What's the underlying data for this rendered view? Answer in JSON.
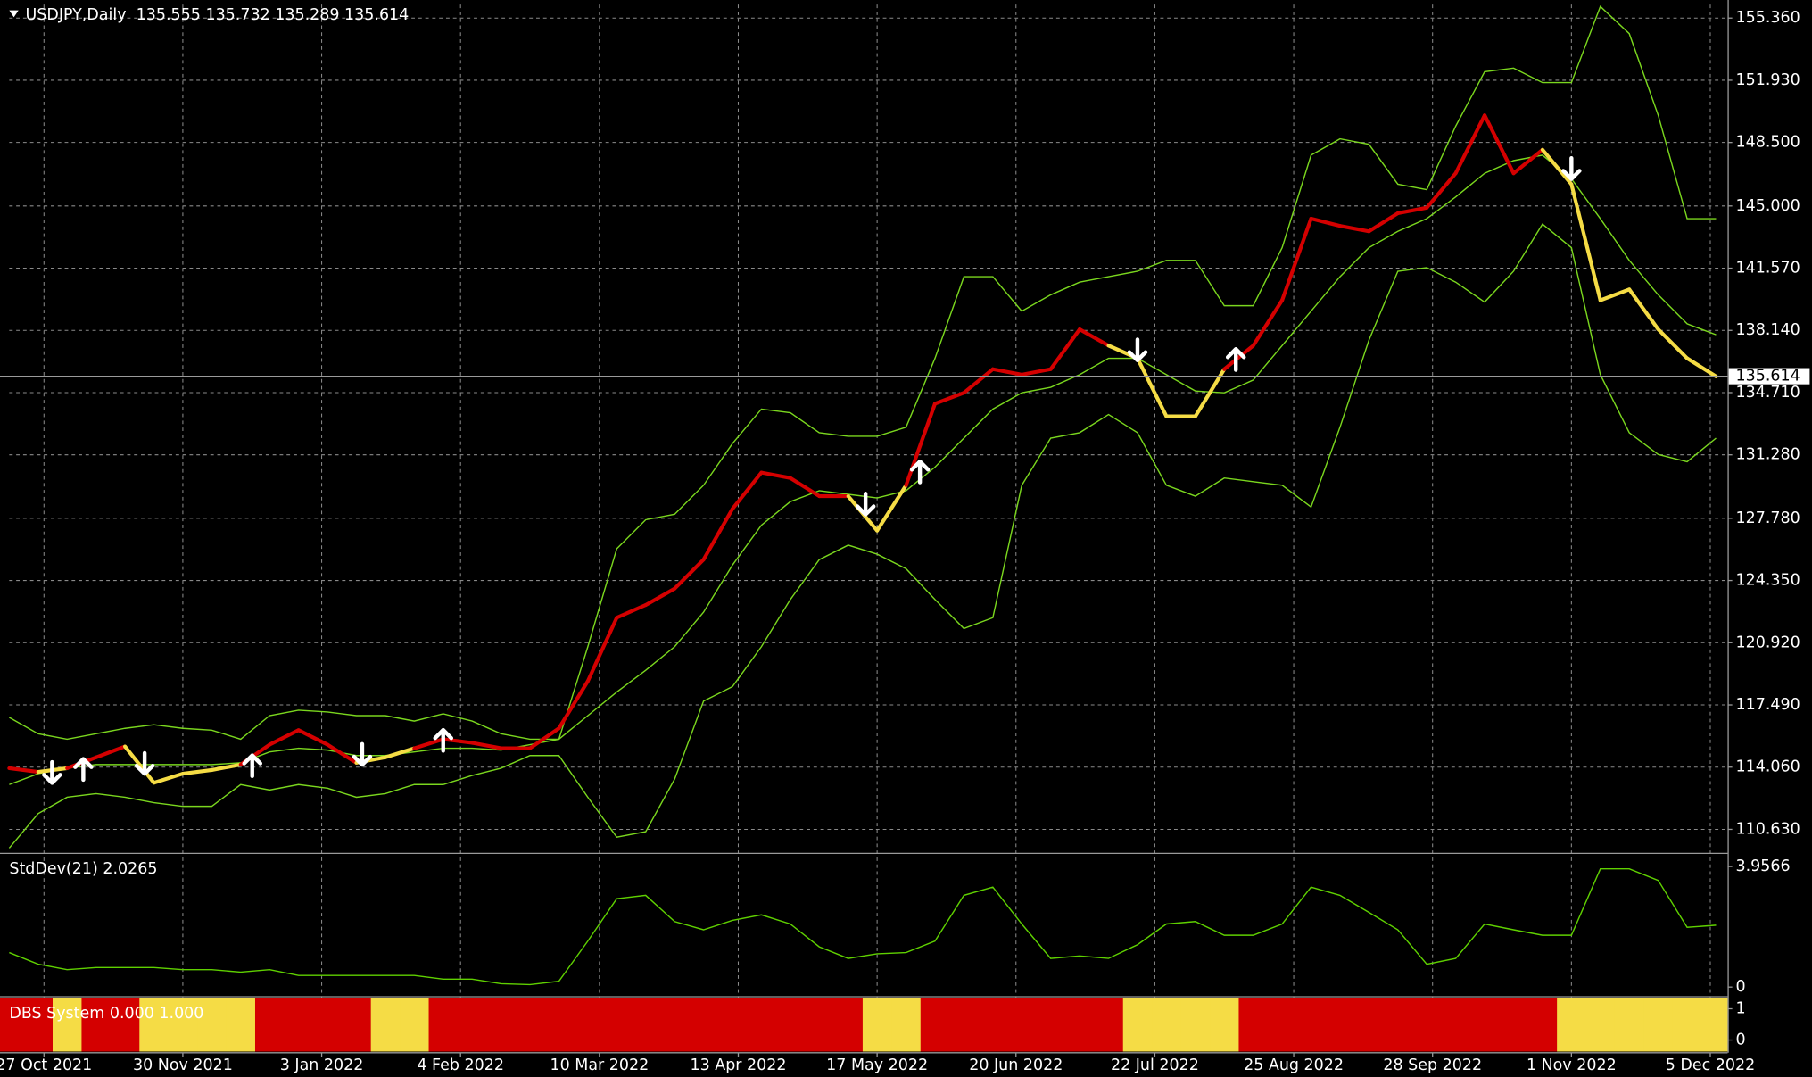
{
  "chart_data": [
    {
      "type": "line",
      "title": "USDJPY,Daily  135.555 135.732 135.289 135.614",
      "x": [
        0,
        5,
        10,
        15,
        20,
        25,
        30,
        35,
        40,
        45,
        50,
        55,
        60,
        65,
        70,
        75,
        80,
        85,
        90,
        95,
        100,
        105,
        110,
        115,
        120,
        125,
        130,
        135,
        140,
        145,
        150,
        155,
        160,
        165,
        170,
        175,
        180,
        185,
        190,
        195,
        200,
        205,
        210,
        215,
        220,
        225,
        230,
        235,
        240,
        245,
        250,
        255,
        260,
        265,
        270,
        275,
        280,
        285,
        290,
        295
      ],
      "xlim": [
        0,
        297
      ],
      "xticks": [
        {
          "value": 6,
          "label": "27 Oct 2021"
        },
        {
          "value": 30,
          "label": "30 Nov 2021"
        },
        {
          "value": 54,
          "label": "3 Jan 2022"
        },
        {
          "value": 78,
          "label": "4 Feb 2022"
        },
        {
          "value": 102,
          "label": "10 Mar 2022"
        },
        {
          "value": 126,
          "label": "13 Apr 2022"
        },
        {
          "value": 150,
          "label": "17 May 2022"
        },
        {
          "value": 174,
          "label": "20 Jun 2022"
        },
        {
          "value": 198,
          "label": "22 Jul 2022"
        },
        {
          "value": 222,
          "label": "25 Aug 2022"
        },
        {
          "value": 246,
          "label": "28 Sep 2022"
        },
        {
          "value": 270,
          "label": "1 Nov 2022"
        },
        {
          "value": 294,
          "label": "5 Dec 2022"
        }
      ],
      "ylim": [
        109.4,
        156.1
      ],
      "yticks": [
        {
          "value": 155.36,
          "label": "155.360"
        },
        {
          "value": 151.93,
          "label": "151.930"
        },
        {
          "value": 148.5,
          "label": "148.500"
        },
        {
          "value": 145,
          "label": "145.000"
        },
        {
          "value": 141.57,
          "label": "141.570"
        },
        {
          "value": 138.14,
          "label": "138.140"
        },
        {
          "value": 134.71,
          "label": "134.710"
        },
        {
          "value": 131.28,
          "label": "131.280"
        },
        {
          "value": 127.78,
          "label": "127.780"
        },
        {
          "value": 124.35,
          "label": "124.350"
        },
        {
          "value": 120.92,
          "label": "120.920"
        },
        {
          "value": 117.49,
          "label": "117.490"
        },
        {
          "value": 114.06,
          "label": "114.060"
        },
        {
          "value": 110.63,
          "label": "110.630"
        }
      ],
      "grid": true,
      "series": [
        {
          "color": "#7ad61e",
          "values": [
            116.8,
            115.9,
            115.6,
            115.9,
            116.2,
            116.4,
            116.2,
            116.1,
            115.6,
            116.9,
            117.2,
            117.1,
            116.9,
            116.9,
            116.6,
            117.0,
            116.6,
            115.9,
            115.6,
            115.6,
            120.7,
            126.1,
            127.7,
            128.0,
            129.6,
            131.9,
            133.8,
            133.6,
            132.5,
            132.3,
            132.3,
            132.8,
            136.6,
            141.1,
            141.1,
            139.2,
            140.1,
            140.8,
            141.1,
            141.4,
            142.0,
            142.0,
            139.5,
            139.5,
            142.7,
            147.8,
            148.7,
            148.4,
            146.2,
            145.9,
            149.4,
            152.4,
            152.6,
            151.8,
            151.8,
            156.0,
            154.5,
            150.0,
            144.3,
            144.3
          ]
        },
        {
          "color": "#7ad61e",
          "values": [
            113.1,
            113.7,
            114.0,
            114.2,
            114.2,
            114.2,
            114.2,
            114.2,
            114.3,
            114.9,
            115.1,
            115.0,
            114.7,
            114.7,
            114.9,
            115.1,
            115.1,
            115.0,
            115.3,
            115.6,
            116.9,
            118.2,
            119.4,
            120.7,
            122.6,
            125.2,
            127.4,
            128.7,
            129.3,
            129.1,
            128.9,
            129.3,
            130.6,
            132.2,
            133.8,
            134.7,
            135.0,
            135.7,
            136.6,
            136.6,
            135.7,
            134.8,
            134.7,
            135.4,
            137.3,
            139.2,
            141.1,
            142.7,
            143.6,
            144.3,
            145.5,
            146.8,
            147.5,
            147.8,
            146.5,
            144.3,
            142.0,
            140.1,
            138.5,
            137.9
          ]
        },
        {
          "color": "#7ad61e",
          "values": [
            109.6,
            111.5,
            112.4,
            112.6,
            112.4,
            112.1,
            111.9,
            111.9,
            113.1,
            112.8,
            113.1,
            112.9,
            112.4,
            112.6,
            113.1,
            113.1,
            113.6,
            114.0,
            114.7,
            114.7,
            112.4,
            110.2,
            110.5,
            113.4,
            117.7,
            118.5,
            120.7,
            123.3,
            125.5,
            126.3,
            125.8,
            125.0,
            123.3,
            121.7,
            122.3,
            129.6,
            132.2,
            132.5,
            133.5,
            132.5,
            129.6,
            129.0,
            130.0,
            129.8,
            129.6,
            128.4,
            132.8,
            137.6,
            141.4,
            141.6,
            140.8,
            139.7,
            141.4,
            144.0,
            142.7,
            135.7,
            132.5,
            131.3,
            130.9,
            132.2
          ]
        },
        {
          "color": "#d40000",
          "highlight_color": "#f5dc45",
          "values": [
            114.0,
            113.8,
            114.0,
            114.6,
            115.2,
            113.2,
            113.7,
            113.9,
            114.2,
            115.3,
            116.1,
            115.3,
            114.3,
            114.6,
            115.1,
            115.6,
            115.4,
            115.1,
            115.1,
            116.2,
            118.8,
            122.3,
            123.0,
            123.9,
            125.5,
            128.3,
            130.3,
            130.0,
            129.0,
            129.0,
            127.1,
            129.6,
            134.1,
            134.7,
            136.0,
            135.7,
            136.0,
            138.2,
            137.3,
            136.6,
            133.4,
            133.4,
            136.0,
            137.3,
            139.8,
            144.3,
            143.9,
            143.6,
            144.6,
            144.9,
            146.8,
            150.0,
            146.8,
            148.1,
            146.2,
            139.8,
            140.4,
            138.2,
            136.6,
            135.6
          ]
        }
      ],
      "signals": [
        {
          "x": 7.4,
          "y": 113.7,
          "direction": "down"
        },
        {
          "x": 12.8,
          "y": 114.0,
          "direction": "up"
        },
        {
          "x": 23.4,
          "y": 114.2,
          "direction": "down"
        },
        {
          "x": 42,
          "y": 114.2,
          "direction": "up"
        },
        {
          "x": 61,
          "y": 114.7,
          "direction": "down"
        },
        {
          "x": 75,
          "y": 115.6,
          "direction": "up"
        },
        {
          "x": 148,
          "y": 128.5,
          "direction": "down"
        },
        {
          "x": 157.4,
          "y": 130.4,
          "direction": "up"
        },
        {
          "x": 195,
          "y": 137.0,
          "direction": "down"
        },
        {
          "x": 212,
          "y": 136.6,
          "direction": "up"
        },
        {
          "x": 270,
          "y": 147.0,
          "direction": "down"
        }
      ],
      "signal_color": "#ffffff",
      "last_price": 135.614
    },
    {
      "type": "line",
      "title": "StdDev(21) 2.0265",
      "color": "#5fd000",
      "values": [
        1.13,
        0.75,
        0.57,
        0.64,
        0.64,
        0.64,
        0.57,
        0.57,
        0.49,
        0.57,
        0.38,
        0.38,
        0.38,
        0.38,
        0.38,
        0.26,
        0.26,
        0.11,
        0.08,
        0.19,
        1.51,
        2.9,
        3.01,
        2.15,
        1.88,
        2.19,
        2.37,
        2.07,
        1.32,
        0.94,
        1.09,
        1.13,
        1.51,
        3.01,
        3.28,
        2.07,
        0.94,
        1.02,
        0.94,
        1.39,
        2.07,
        2.15,
        1.7,
        1.7,
        2.07,
        3.28,
        3.01,
        2.45,
        1.88,
        0.75,
        0.94,
        2.07,
        1.88,
        1.7,
        1.7,
        3.88,
        3.88,
        3.5,
        1.96,
        2.03
      ],
      "ylim": [
        -0.26,
        4.33
      ],
      "yticks": [
        0,
        3.9566
      ]
    },
    {
      "type": "bar",
      "title": "DBS System 0.000 1.000",
      "colors": [
        "#d40000",
        "#f5dc45"
      ],
      "values": [
        0,
        0,
        1,
        0,
        0,
        1,
        1,
        1,
        1,
        0,
        0,
        0,
        0,
        1,
        1,
        0,
        0,
        0,
        0,
        0,
        0,
        0,
        0,
        0,
        0,
        0,
        0,
        0,
        0,
        0,
        1,
        1,
        0,
        0,
        0,
        0,
        0,
        0,
        0,
        1,
        1,
        1,
        1,
        0,
        0,
        0,
        0,
        0,
        0,
        0,
        0,
        0,
        0,
        0,
        1,
        1,
        1,
        1,
        1,
        1
      ],
      "ylim": [
        -0.37,
        1.33
      ],
      "yticks": [
        0,
        1
      ]
    }
  ]
}
